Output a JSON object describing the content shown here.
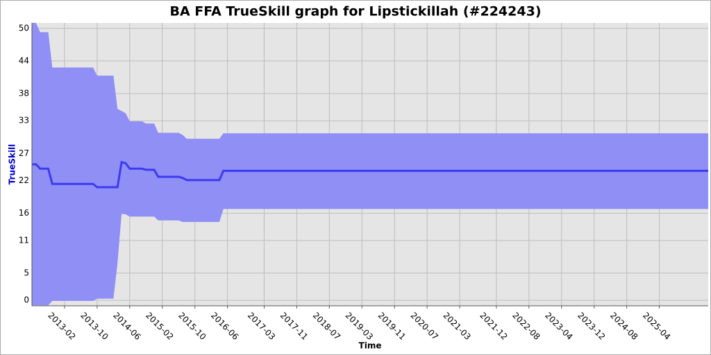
{
  "chart_data": {
    "type": "band-line",
    "title": "BA FFA TrueSkill graph for Lipstickillah (#224243)",
    "xlabel": "Time",
    "ylabel": "TrueSkill",
    "x": [
      "2012-06",
      "2012-07",
      "2012-08",
      "2012-10",
      "2012-11",
      "2013-09",
      "2013-10",
      "2014-02",
      "2014-03",
      "2014-04",
      "2014-05",
      "2014-06",
      "2014-09",
      "2014-10",
      "2014-12",
      "2015-01",
      "2015-06",
      "2015-07",
      "2015-08",
      "2016-04",
      "2016-05",
      "2026-04"
    ],
    "series": [
      {
        "color": "#3b3bf0",
        "values": [
          25.0,
          25.0,
          24.2,
          24.2,
          21.4,
          21.4,
          20.8,
          20.8,
          20.8,
          25.4,
          25.2,
          24.2,
          24.2,
          24.0,
          24.0,
          22.7,
          22.7,
          22.5,
          22.1,
          22.1,
          23.8,
          23.8
        ]
      }
    ],
    "band": {
      "color": "#8f8ff5",
      "upper": [
        51,
        51,
        49.3,
        49.3,
        42.8,
        42.8,
        41.3,
        41.3,
        35.2,
        34.8,
        34.4,
        32.9,
        32.9,
        32.5,
        32.5,
        30.8,
        30.8,
        30.4,
        29.7,
        29.7,
        30.7,
        30.7
      ],
      "lower": [
        -0.9,
        -0.9,
        -0.9,
        -0.9,
        -0.1,
        -0.1,
        0.3,
        0.3,
        6.8,
        15.9,
        15.8,
        15.4,
        15.4,
        15.4,
        15.4,
        14.7,
        14.7,
        14.4,
        14.4,
        14.4,
        16.8,
        16.8
      ]
    },
    "xlim": [
      "2012-06",
      "2026-04"
    ],
    "xticks": [
      "2013-02",
      "2013-10",
      "2014-06",
      "2015-02",
      "2015-10",
      "2016-06",
      "2017-03",
      "2017-11",
      "2018-07",
      "2019-03",
      "2019-11",
      "2020-07",
      "2021-03",
      "2021-12",
      "2022-08",
      "2023-04",
      "2023-12",
      "2024-08",
      "2025-04"
    ],
    "ylim": [
      -1,
      51
    ],
    "yticks": [
      0,
      5,
      11,
      16,
      22,
      27,
      33,
      38,
      44,
      50
    ],
    "grid": true
  }
}
